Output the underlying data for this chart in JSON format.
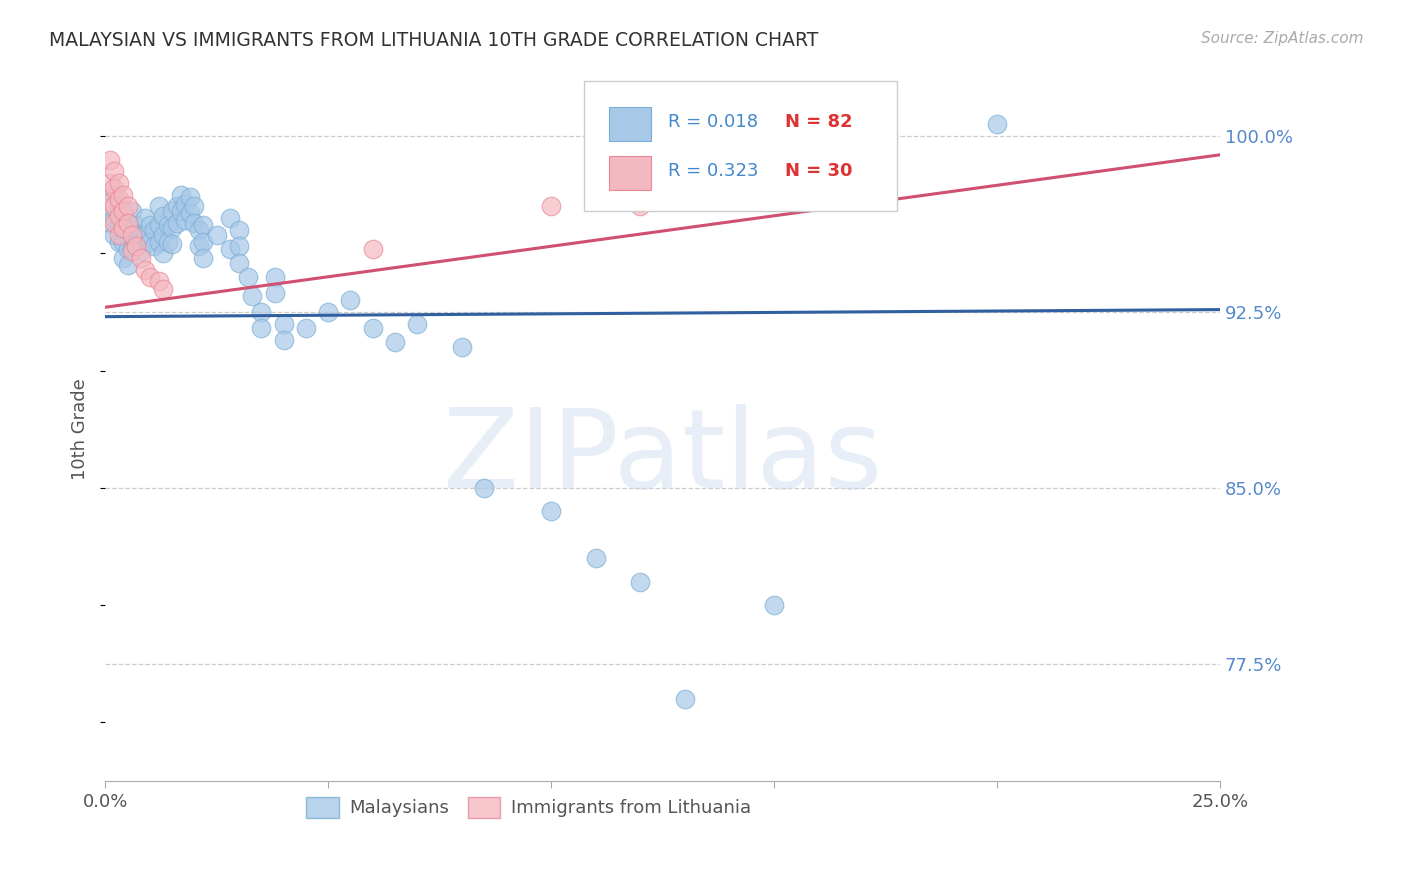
{
  "title": "MALAYSIAN VS IMMIGRANTS FROM LITHUANIA 10TH GRADE CORRELATION CHART",
  "source": "Source: ZipAtlas.com",
  "ylabel": "10th Grade",
  "xlim": [
    0.0,
    0.25
  ],
  "ylim": [
    0.725,
    1.025
  ],
  "yticks": [
    1.0,
    0.925,
    0.85,
    0.775
  ],
  "ytick_labels": [
    "100.0%",
    "92.5%",
    "85.0%",
    "77.5%"
  ],
  "xticks": [
    0.0,
    0.05,
    0.1,
    0.15,
    0.2,
    0.25
  ],
  "xtick_labels": [
    "0.0%",
    "",
    "",
    "",
    "",
    "25.0%"
  ],
  "watermark": "ZIPatlas",
  "blue_color": "#a8c8e8",
  "pink_color": "#f4b8c0",
  "blue_edge_color": "#7aafd4",
  "pink_edge_color": "#e88898",
  "blue_line_color": "#3060a0",
  "pink_line_color": "#d05070",
  "background_color": "#ffffff",
  "grid_color": "#cccccc",
  "right_label_color": "#5588cc",
  "legend_r1_color": "#4488cc",
  "legend_n1_color": "#dd3333",
  "legend_r2_color": "#4488cc",
  "legend_n2_color": "#dd3333",
  "blue_scatter": [
    [
      0.001,
      0.97
    ],
    [
      0.001,
      0.963
    ],
    [
      0.002,
      0.975
    ],
    [
      0.002,
      0.965
    ],
    [
      0.002,
      0.958
    ],
    [
      0.003,
      0.97
    ],
    [
      0.003,
      0.962
    ],
    [
      0.003,
      0.955
    ],
    [
      0.004,
      0.96
    ],
    [
      0.004,
      0.955
    ],
    [
      0.004,
      0.948
    ],
    [
      0.005,
      0.96
    ],
    [
      0.005,
      0.952
    ],
    [
      0.005,
      0.945
    ],
    [
      0.006,
      0.968
    ],
    [
      0.006,
      0.96
    ],
    [
      0.006,
      0.952
    ],
    [
      0.007,
      0.962
    ],
    [
      0.007,
      0.956
    ],
    [
      0.008,
      0.958
    ],
    [
      0.008,
      0.951
    ],
    [
      0.009,
      0.965
    ],
    [
      0.009,
      0.958
    ],
    [
      0.01,
      0.962
    ],
    [
      0.01,
      0.955
    ],
    [
      0.011,
      0.96
    ],
    [
      0.011,
      0.953
    ],
    [
      0.012,
      0.97
    ],
    [
      0.012,
      0.962
    ],
    [
      0.012,
      0.955
    ],
    [
      0.013,
      0.966
    ],
    [
      0.013,
      0.958
    ],
    [
      0.013,
      0.95
    ],
    [
      0.014,
      0.962
    ],
    [
      0.014,
      0.955
    ],
    [
      0.015,
      0.968
    ],
    [
      0.015,
      0.961
    ],
    [
      0.015,
      0.954
    ],
    [
      0.016,
      0.97
    ],
    [
      0.016,
      0.963
    ],
    [
      0.017,
      0.975
    ],
    [
      0.017,
      0.968
    ],
    [
      0.018,
      0.971
    ],
    [
      0.018,
      0.964
    ],
    [
      0.019,
      0.974
    ],
    [
      0.019,
      0.967
    ],
    [
      0.02,
      0.97
    ],
    [
      0.02,
      0.963
    ],
    [
      0.021,
      0.96
    ],
    [
      0.021,
      0.953
    ],
    [
      0.022,
      0.962
    ],
    [
      0.022,
      0.955
    ],
    [
      0.022,
      0.948
    ],
    [
      0.025,
      0.958
    ],
    [
      0.028,
      0.965
    ],
    [
      0.028,
      0.952
    ],
    [
      0.03,
      0.96
    ],
    [
      0.03,
      0.953
    ],
    [
      0.03,
      0.946
    ],
    [
      0.032,
      0.94
    ],
    [
      0.033,
      0.932
    ],
    [
      0.035,
      0.925
    ],
    [
      0.035,
      0.918
    ],
    [
      0.038,
      0.94
    ],
    [
      0.038,
      0.933
    ],
    [
      0.04,
      0.92
    ],
    [
      0.04,
      0.913
    ],
    [
      0.045,
      0.918
    ],
    [
      0.05,
      0.925
    ],
    [
      0.055,
      0.93
    ],
    [
      0.06,
      0.918
    ],
    [
      0.065,
      0.912
    ],
    [
      0.07,
      0.92
    ],
    [
      0.08,
      0.91
    ],
    [
      0.085,
      0.85
    ],
    [
      0.1,
      0.84
    ],
    [
      0.11,
      0.82
    ],
    [
      0.12,
      0.81
    ],
    [
      0.13,
      0.76
    ],
    [
      0.15,
      0.8
    ],
    [
      0.2,
      1.005
    ]
  ],
  "pink_scatter": [
    [
      0.001,
      0.99
    ],
    [
      0.001,
      0.98
    ],
    [
      0.001,
      0.972
    ],
    [
      0.002,
      0.985
    ],
    [
      0.002,
      0.978
    ],
    [
      0.002,
      0.97
    ],
    [
      0.002,
      0.963
    ],
    [
      0.003,
      0.98
    ],
    [
      0.003,
      0.973
    ],
    [
      0.003,
      0.966
    ],
    [
      0.003,
      0.958
    ],
    [
      0.004,
      0.975
    ],
    [
      0.004,
      0.968
    ],
    [
      0.004,
      0.961
    ],
    [
      0.005,
      0.97
    ],
    [
      0.005,
      0.963
    ],
    [
      0.006,
      0.958
    ],
    [
      0.006,
      0.951
    ],
    [
      0.007,
      0.953
    ],
    [
      0.008,
      0.948
    ],
    [
      0.009,
      0.943
    ],
    [
      0.01,
      0.94
    ],
    [
      0.012,
      0.938
    ],
    [
      0.013,
      0.935
    ],
    [
      0.06,
      0.952
    ],
    [
      0.1,
      0.97
    ],
    [
      0.12,
      0.97
    ]
  ],
  "blue_line_x": [
    0.0,
    0.25
  ],
  "blue_line_y": [
    0.923,
    0.926
  ],
  "pink_line_x": [
    0.0,
    0.25
  ],
  "pink_line_y": [
    0.927,
    0.992
  ]
}
